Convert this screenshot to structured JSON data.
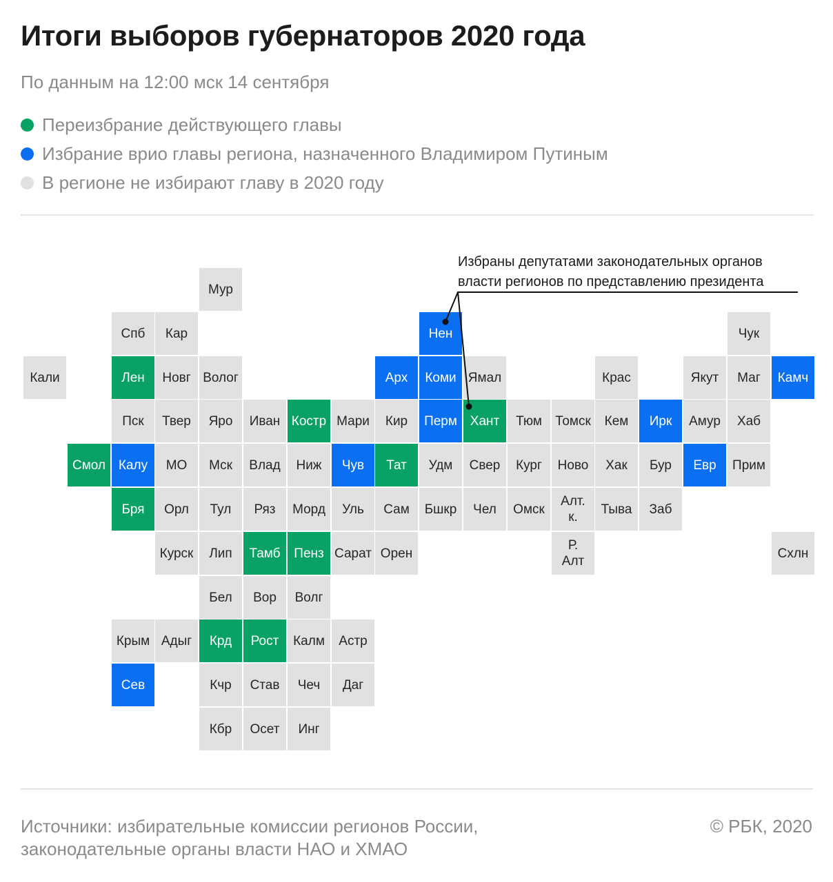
{
  "title": "Итоги выборов губернаторов 2020 года",
  "subtitle": "По данным на 12:00 мск 14 сентября",
  "colors": {
    "green": "#0aa164",
    "blue": "#0a6ff0",
    "grey": "#e1e1e1"
  },
  "legend": [
    {
      "label": "Переизбрание действующего главы",
      "color": "#0aa164"
    },
    {
      "label": "Избрание врио главы региона, назначенного Владимиром Путиным",
      "color": "#0a6ff0"
    },
    {
      "label": "В регионе не избирают главу в 2020 году",
      "color": "#e1e1e1"
    }
  ],
  "annotation": {
    "line1": "Избраны депутатами законодательных органов",
    "line2": "власти регионов по представлению президента"
  },
  "regions": [
    {
      "name": "Мур",
      "row": 0,
      "col": 4,
      "status": "grey"
    },
    {
      "name": "Спб",
      "row": 1,
      "col": 2,
      "status": "grey"
    },
    {
      "name": "Кар",
      "row": 1,
      "col": 3,
      "status": "grey"
    },
    {
      "name": "Нен",
      "row": 1,
      "col": 9,
      "status": "blue"
    },
    {
      "name": "Чук",
      "row": 1,
      "col": 16,
      "status": "grey"
    },
    {
      "name": "Кали",
      "row": 2,
      "col": 0,
      "status": "grey"
    },
    {
      "name": "Лен",
      "row": 2,
      "col": 2,
      "status": "green"
    },
    {
      "name": "Новг",
      "row": 2,
      "col": 3,
      "status": "grey"
    },
    {
      "name": "Волог",
      "row": 2,
      "col": 4,
      "status": "grey"
    },
    {
      "name": "Арх",
      "row": 2,
      "col": 8,
      "status": "blue"
    },
    {
      "name": "Коми",
      "row": 2,
      "col": 9,
      "status": "blue"
    },
    {
      "name": "Ямал",
      "row": 2,
      "col": 10,
      "status": "grey"
    },
    {
      "name": "Крас",
      "row": 2,
      "col": 13,
      "status": "grey"
    },
    {
      "name": "Якут",
      "row": 2,
      "col": 15,
      "status": "grey"
    },
    {
      "name": "Маг",
      "row": 2,
      "col": 16,
      "status": "grey"
    },
    {
      "name": "Камч",
      "row": 2,
      "col": 17,
      "status": "blue"
    },
    {
      "name": "Пск",
      "row": 3,
      "col": 2,
      "status": "grey"
    },
    {
      "name": "Твер",
      "row": 3,
      "col": 3,
      "status": "grey"
    },
    {
      "name": "Яро",
      "row": 3,
      "col": 4,
      "status": "grey"
    },
    {
      "name": "Иван",
      "row": 3,
      "col": 5,
      "status": "grey"
    },
    {
      "name": "Костр",
      "row": 3,
      "col": 6,
      "status": "green"
    },
    {
      "name": "Мари",
      "row": 3,
      "col": 7,
      "status": "grey"
    },
    {
      "name": "Кир",
      "row": 3,
      "col": 8,
      "status": "grey"
    },
    {
      "name": "Перм",
      "row": 3,
      "col": 9,
      "status": "blue"
    },
    {
      "name": "Хант",
      "row": 3,
      "col": 10,
      "status": "green"
    },
    {
      "name": "Тюм",
      "row": 3,
      "col": 11,
      "status": "grey"
    },
    {
      "name": "Томск",
      "row": 3,
      "col": 12,
      "status": "grey"
    },
    {
      "name": "Кем",
      "row": 3,
      "col": 13,
      "status": "grey"
    },
    {
      "name": "Ирк",
      "row": 3,
      "col": 14,
      "status": "blue"
    },
    {
      "name": "Амур",
      "row": 3,
      "col": 15,
      "status": "grey"
    },
    {
      "name": "Хаб",
      "row": 3,
      "col": 16,
      "status": "grey"
    },
    {
      "name": "Смол",
      "row": 4,
      "col": 1,
      "status": "green"
    },
    {
      "name": "Калу",
      "row": 4,
      "col": 2,
      "status": "blue"
    },
    {
      "name": "МО",
      "row": 4,
      "col": 3,
      "status": "grey"
    },
    {
      "name": "Мск",
      "row": 4,
      "col": 4,
      "status": "grey"
    },
    {
      "name": "Влад",
      "row": 4,
      "col": 5,
      "status": "grey"
    },
    {
      "name": "Ниж",
      "row": 4,
      "col": 6,
      "status": "grey"
    },
    {
      "name": "Чув",
      "row": 4,
      "col": 7,
      "status": "blue"
    },
    {
      "name": "Тат",
      "row": 4,
      "col": 8,
      "status": "green"
    },
    {
      "name": "Удм",
      "row": 4,
      "col": 9,
      "status": "grey"
    },
    {
      "name": "Свер",
      "row": 4,
      "col": 10,
      "status": "grey"
    },
    {
      "name": "Кург",
      "row": 4,
      "col": 11,
      "status": "grey"
    },
    {
      "name": "Ново",
      "row": 4,
      "col": 12,
      "status": "grey"
    },
    {
      "name": "Хак",
      "row": 4,
      "col": 13,
      "status": "grey"
    },
    {
      "name": "Бур",
      "row": 4,
      "col": 14,
      "status": "grey"
    },
    {
      "name": "Евр",
      "row": 4,
      "col": 15,
      "status": "blue"
    },
    {
      "name": "Прим",
      "row": 4,
      "col": 16,
      "status": "grey"
    },
    {
      "name": "Бря",
      "row": 5,
      "col": 2,
      "status": "green"
    },
    {
      "name": "Орл",
      "row": 5,
      "col": 3,
      "status": "grey"
    },
    {
      "name": "Тул",
      "row": 5,
      "col": 4,
      "status": "grey"
    },
    {
      "name": "Ряз",
      "row": 5,
      "col": 5,
      "status": "grey"
    },
    {
      "name": "Морд",
      "row": 5,
      "col": 6,
      "status": "grey"
    },
    {
      "name": "Уль",
      "row": 5,
      "col": 7,
      "status": "grey"
    },
    {
      "name": "Сам",
      "row": 5,
      "col": 8,
      "status": "grey"
    },
    {
      "name": "Бшкр",
      "row": 5,
      "col": 9,
      "status": "grey"
    },
    {
      "name": "Чел",
      "row": 5,
      "col": 10,
      "status": "grey"
    },
    {
      "name": "Омск",
      "row": 5,
      "col": 11,
      "status": "grey"
    },
    {
      "name": "Алт.\nк.",
      "row": 5,
      "col": 12,
      "status": "grey"
    },
    {
      "name": "Тыва",
      "row": 5,
      "col": 13,
      "status": "grey"
    },
    {
      "name": "Заб",
      "row": 5,
      "col": 14,
      "status": "grey"
    },
    {
      "name": "Курск",
      "row": 6,
      "col": 3,
      "status": "grey"
    },
    {
      "name": "Лип",
      "row": 6,
      "col": 4,
      "status": "grey"
    },
    {
      "name": "Тамб",
      "row": 6,
      "col": 5,
      "status": "green"
    },
    {
      "name": "Пенз",
      "row": 6,
      "col": 6,
      "status": "green"
    },
    {
      "name": "Сарат",
      "row": 6,
      "col": 7,
      "status": "grey"
    },
    {
      "name": "Орен",
      "row": 6,
      "col": 8,
      "status": "grey"
    },
    {
      "name": "Р.\nАлт",
      "row": 6,
      "col": 12,
      "status": "grey"
    },
    {
      "name": "Схлн",
      "row": 6,
      "col": 17,
      "status": "grey"
    },
    {
      "name": "Бел",
      "row": 7,
      "col": 4,
      "status": "grey"
    },
    {
      "name": "Вор",
      "row": 7,
      "col": 5,
      "status": "grey"
    },
    {
      "name": "Волг",
      "row": 7,
      "col": 6,
      "status": "grey"
    },
    {
      "name": "Крым",
      "row": 8,
      "col": 2,
      "status": "grey"
    },
    {
      "name": "Адыг",
      "row": 8,
      "col": 3,
      "status": "grey"
    },
    {
      "name": "Крд",
      "row": 8,
      "col": 4,
      "status": "green"
    },
    {
      "name": "Рост",
      "row": 8,
      "col": 5,
      "status": "green"
    },
    {
      "name": "Калм",
      "row": 8,
      "col": 6,
      "status": "grey"
    },
    {
      "name": "Астр",
      "row": 8,
      "col": 7,
      "status": "grey"
    },
    {
      "name": "Сев",
      "row": 9,
      "col": 2,
      "status": "blue"
    },
    {
      "name": "Кчр",
      "row": 9,
      "col": 4,
      "status": "grey"
    },
    {
      "name": "Став",
      "row": 9,
      "col": 5,
      "status": "grey"
    },
    {
      "name": "Чеч",
      "row": 9,
      "col": 6,
      "status": "grey"
    },
    {
      "name": "Даг",
      "row": 9,
      "col": 7,
      "status": "grey"
    },
    {
      "name": "Кбр",
      "row": 10,
      "col": 4,
      "status": "grey"
    },
    {
      "name": "Осет",
      "row": 10,
      "col": 5,
      "status": "grey"
    },
    {
      "name": "Инг",
      "row": 10,
      "col": 6,
      "status": "grey"
    }
  ],
  "footer": {
    "source_line1": "Источники: избирательные комиссии регионов России,",
    "source_line2": "законодательные органы власти НАО и ХМАО",
    "copyright": "© РБК, 2020"
  }
}
